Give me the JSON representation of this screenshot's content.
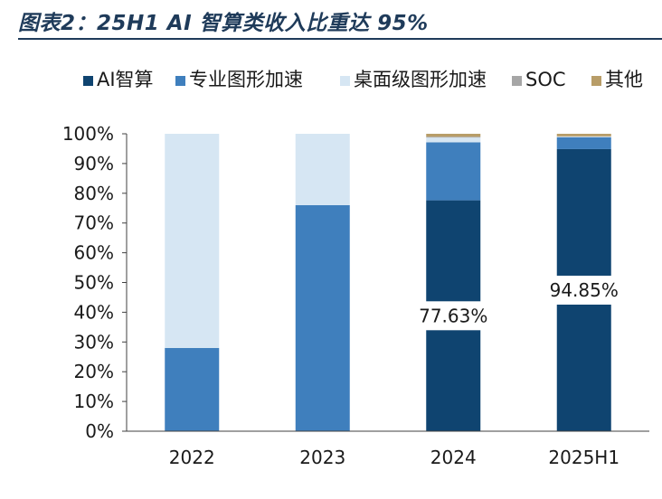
{
  "figure_title": "图表2：25H1 AI 智算类收入比重达 95%",
  "chart_data": {
    "type": "bar",
    "stacked": true,
    "categories": [
      "2022",
      "2023",
      "2024",
      "2025H1"
    ],
    "ylim": [
      0,
      100
    ],
    "yticks": [
      "0%",
      "10%",
      "20%",
      "30%",
      "40%",
      "50%",
      "60%",
      "70%",
      "80%",
      "90%",
      "100%"
    ],
    "legend_position": "top",
    "series": [
      {
        "name": "AI智算",
        "color": "#0f4470",
        "values": [
          0,
          0,
          77.63,
          94.85
        ]
      },
      {
        "name": "专业图形加速",
        "color": "#3f7fbd",
        "values": [
          28,
          76,
          19.5,
          4.0
        ]
      },
      {
        "name": "桌面级图形加速",
        "color": "#d6e6f3",
        "values": [
          72,
          24,
          1.6,
          0.2
        ]
      },
      {
        "name": "SOC",
        "color": "#a6a6a6",
        "values": [
          0,
          0,
          0.3,
          0.1
        ]
      },
      {
        "name": "其他",
        "color": "#b89d68",
        "values": [
          0,
          0,
          0.97,
          0.85
        ]
      }
    ],
    "data_labels": [
      {
        "category": "2024",
        "series": "AI智算",
        "text": "77.63%"
      },
      {
        "category": "2025H1",
        "series": "AI智算",
        "text": "94.85%"
      }
    ]
  }
}
